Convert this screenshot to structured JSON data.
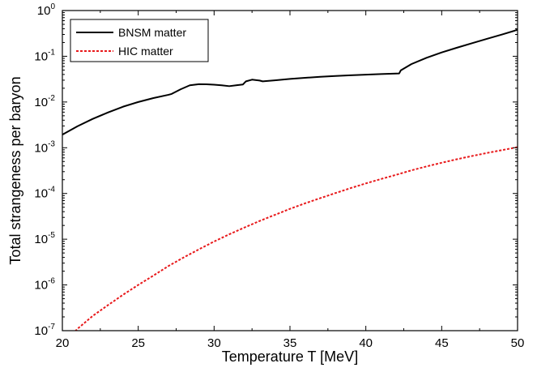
{
  "chart_data": {
    "type": "line",
    "xlabel": "Temperature T [MeV]",
    "ylabel": "Total strangeness per baryon",
    "xlim": [
      20,
      50
    ],
    "ylim": [
      1e-07,
      1
    ],
    "yscale": "log",
    "grid": false,
    "legend_position": "top-left",
    "x_ticks": [
      "20",
      "25",
      "30",
      "35",
      "40",
      "45",
      "50"
    ],
    "y_ticks": [
      {
        "base": "10",
        "exp": "-7"
      },
      {
        "base": "10",
        "exp": "-6"
      },
      {
        "base": "10",
        "exp": "-5"
      },
      {
        "base": "10",
        "exp": "-4"
      },
      {
        "base": "10",
        "exp": "-3"
      },
      {
        "base": "10",
        "exp": "-2"
      },
      {
        "base": "10",
        "exp": "-1"
      },
      {
        "base": "10",
        "exp": "0"
      }
    ],
    "series": [
      {
        "name": "BNSM matter",
        "color": "#000000",
        "style": "solid",
        "x": [
          20,
          21,
          22,
          23,
          24,
          25,
          26,
          27,
          27.2,
          27.8,
          28.4,
          29,
          29.5,
          30,
          30.5,
          31,
          31.5,
          31.9,
          32.1,
          32.5,
          33,
          33.2,
          34,
          35,
          36,
          37,
          38,
          39,
          40,
          41,
          42,
          42.2,
          42.3,
          43,
          44,
          45,
          46,
          47,
          48,
          49,
          50
        ],
        "y": [
          0.00193,
          0.00295,
          0.00427,
          0.0059,
          0.0079,
          0.01,
          0.0122,
          0.0144,
          0.015,
          0.019,
          0.0232,
          0.0245,
          0.0244,
          0.0239,
          0.0232,
          0.0222,
          0.0233,
          0.0242,
          0.0283,
          0.0308,
          0.0295,
          0.0283,
          0.0298,
          0.0319,
          0.0338,
          0.0355,
          0.0371,
          0.0384,
          0.0396,
          0.0408,
          0.042,
          0.0422,
          0.049,
          0.0673,
          0.0927,
          0.1214,
          0.1538,
          0.1931,
          0.2416,
          0.3009,
          0.3798
        ]
      },
      {
        "name": "HIC matter",
        "color": "#e8191b",
        "style": "dashed",
        "x": [
          20.3,
          20.7,
          21,
          22,
          23,
          24,
          25,
          26,
          27,
          28,
          29,
          30,
          31,
          32,
          33,
          34,
          35,
          36,
          37,
          38,
          39,
          40,
          41,
          42,
          43,
          44,
          45,
          46,
          47,
          48,
          49,
          50
        ],
        "y": [
          6.2e-08,
          8.7e-08,
          1.1e-07,
          2.1e-07,
          3.6e-07,
          6.1e-07,
          1e-06,
          1.6e-06,
          2.6e-06,
          4e-06,
          6e-06,
          8.9e-06,
          1.28e-05,
          1.8e-05,
          2.5e-05,
          3.4e-05,
          4.6e-05,
          6.1e-05,
          7.9e-05,
          0.000102,
          0.000131,
          0.000166,
          0.000207,
          0.000256,
          0.00032,
          0.00039,
          0.00047,
          0.00056,
          0.00066,
          0.00077,
          0.00089,
          0.00103
        ]
      }
    ]
  }
}
